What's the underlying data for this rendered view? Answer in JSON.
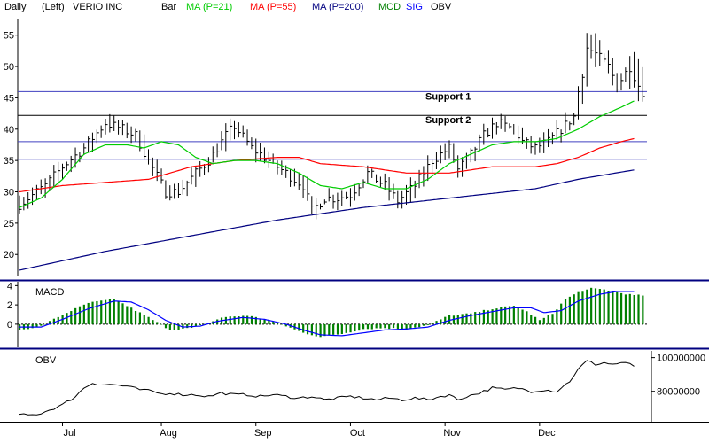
{
  "header": {
    "period": "Daily",
    "scale_side": "(Left)",
    "symbol": "VERIO INC",
    "legend": [
      {
        "label": "Bar",
        "color": "#000000"
      },
      {
        "label": "MA (P=21)",
        "color": "#00cc00"
      },
      {
        "label": "MA (P=55)",
        "color": "#ff0000"
      },
      {
        "label": "MA (P=200)",
        "color": "#000080"
      },
      {
        "label": "MCD",
        "color": "#008000"
      },
      {
        "label": "SIG",
        "color": "#0000ff"
      },
      {
        "label": "OBV",
        "color": "#000000"
      }
    ]
  },
  "colors": {
    "bars": "#000000",
    "ma21": "#00cc00",
    "ma55": "#ff0000",
    "ma200": "#000080",
    "macd_hist": "#008000",
    "signal": "#0000ff",
    "support_blue": "#4040c0",
    "support_black": "#000000",
    "panel_border": "#000080"
  },
  "chart_data": [
    {
      "type": "bar",
      "subtype": "ohlc",
      "panel": "price",
      "y_ticks": [
        20,
        25,
        30,
        35,
        40,
        45,
        50,
        55
      ],
      "ylim": [
        16.5,
        57.5
      ],
      "xlim": [
        0,
        146
      ],
      "x_ticks": [
        {
          "label": "Jul",
          "x": 10
        },
        {
          "label": "Aug",
          "x": 33
        },
        {
          "label": "Sep",
          "x": 55
        },
        {
          "label": "Oct",
          "x": 77
        },
        {
          "label": "Nov",
          "x": 99
        },
        {
          "label": "Dec",
          "x": 121
        }
      ],
      "support_lines": [
        {
          "label": "Support 1",
          "value": 46.0,
          "color": "#4040c0"
        },
        {
          "label": "Support 2",
          "value": 42.2,
          "color": "#000000"
        },
        {
          "label": "",
          "value": 38.0,
          "color": "#4040c0"
        },
        {
          "label": "",
          "value": 35.2,
          "color": "#4040c0"
        }
      ],
      "close_anchors": [
        [
          0,
          28
        ],
        [
          6,
          31
        ],
        [
          10,
          34
        ],
        [
          15,
          37
        ],
        [
          20,
          41
        ],
        [
          24,
          40
        ],
        [
          27,
          39
        ],
        [
          30,
          35
        ],
        [
          34,
          30
        ],
        [
          37,
          30
        ],
        [
          41,
          33
        ],
        [
          44,
          35
        ],
        [
          48,
          39
        ],
        [
          50,
          40.5
        ],
        [
          54,
          37
        ],
        [
          58,
          35
        ],
        [
          62,
          33
        ],
        [
          66,
          31
        ],
        [
          68,
          27
        ],
        [
          71,
          29
        ],
        [
          74,
          29
        ],
        [
          77,
          29.5
        ],
        [
          81,
          33
        ],
        [
          85,
          31
        ],
        [
          88,
          28.5
        ],
        [
          92,
          31
        ],
        [
          96,
          35
        ],
        [
          100,
          37
        ],
        [
          102,
          33.5
        ],
        [
          105,
          36
        ],
        [
          108,
          39
        ],
        [
          111,
          41
        ],
        [
          115,
          40
        ],
        [
          117,
          38
        ],
        [
          120,
          37
        ],
        [
          123,
          38
        ],
        [
          126,
          40
        ],
        [
          129,
          42
        ],
        [
          130,
          46
        ],
        [
          131,
          49
        ],
        [
          132,
          53
        ],
        [
          134,
          52
        ],
        [
          137,
          50
        ],
        [
          139,
          47
        ],
        [
          140,
          48
        ],
        [
          142,
          50
        ],
        [
          144,
          47
        ],
        [
          145,
          46
        ]
      ],
      "ma21_anchors": [
        [
          0,
          27.5
        ],
        [
          5,
          29
        ],
        [
          10,
          32
        ],
        [
          15,
          36
        ],
        [
          20,
          37.5
        ],
        [
          25,
          37.5
        ],
        [
          29,
          37
        ],
        [
          33,
          38
        ],
        [
          37,
          37.5
        ],
        [
          41,
          35.5
        ],
        [
          45,
          34.5
        ],
        [
          50,
          35
        ],
        [
          55,
          35
        ],
        [
          60,
          34.5
        ],
        [
          65,
          33
        ],
        [
          70,
          31
        ],
        [
          75,
          30.5
        ],
        [
          80,
          31.5
        ],
        [
          85,
          30.5
        ],
        [
          90,
          30.5
        ],
        [
          95,
          32
        ],
        [
          100,
          34.5
        ],
        [
          105,
          36
        ],
        [
          110,
          37.5
        ],
        [
          115,
          38
        ],
        [
          120,
          38
        ],
        [
          125,
          38.5
        ],
        [
          130,
          40
        ],
        [
          135,
          42
        ],
        [
          140,
          43.5
        ],
        [
          143,
          44.5
        ]
      ],
      "ma55_anchors": [
        [
          0,
          30
        ],
        [
          10,
          31
        ],
        [
          20,
          31.5
        ],
        [
          30,
          32
        ],
        [
          40,
          34
        ],
        [
          50,
          35
        ],
        [
          60,
          35.5
        ],
        [
          65,
          35.5
        ],
        [
          70,
          34.5
        ],
        [
          80,
          34
        ],
        [
          90,
          33
        ],
        [
          100,
          33
        ],
        [
          110,
          34
        ],
        [
          120,
          34
        ],
        [
          125,
          34.5
        ],
        [
          130,
          35.5
        ],
        [
          135,
          37
        ],
        [
          140,
          38
        ],
        [
          143,
          38.5
        ]
      ],
      "ma200_anchors": [
        [
          0,
          17.5
        ],
        [
          20,
          20.5
        ],
        [
          40,
          23
        ],
        [
          60,
          25.5
        ],
        [
          80,
          27.5
        ],
        [
          100,
          29
        ],
        [
          120,
          30.5
        ],
        [
          130,
          32
        ],
        [
          143,
          33.5
        ]
      ]
    },
    {
      "type": "bar",
      "panel": "macd",
      "title": "MACD",
      "y_ticks": [
        4,
        2,
        0
      ],
      "ylim": [
        -2.4,
        4.4
      ],
      "hist_anchors": [
        [
          0,
          -0.6
        ],
        [
          5,
          -0.2
        ],
        [
          10,
          1.0
        ],
        [
          16,
          2.2
        ],
        [
          22,
          2.6
        ],
        [
          25,
          1.9
        ],
        [
          30,
          0.7
        ],
        [
          35,
          -0.6
        ],
        [
          40,
          -0.4
        ],
        [
          44,
          0.1
        ],
        [
          47,
          0.7
        ],
        [
          53,
          0.9
        ],
        [
          58,
          0.4
        ],
        [
          62,
          -0.2
        ],
        [
          66,
          -0.9
        ],
        [
          70,
          -1.3
        ],
        [
          75,
          -1.0
        ],
        [
          80,
          -0.5
        ],
        [
          85,
          -0.4
        ],
        [
          90,
          -0.5
        ],
        [
          95,
          -0.1
        ],
        [
          100,
          0.9
        ],
        [
          105,
          1.1
        ],
        [
          110,
          1.6
        ],
        [
          115,
          1.9
        ],
        [
          118,
          1.3
        ],
        [
          121,
          0.4
        ],
        [
          124,
          1.1
        ],
        [
          127,
          2.6
        ],
        [
          130,
          3.3
        ],
        [
          133,
          3.7
        ],
        [
          136,
          3.6
        ],
        [
          139,
          3.3
        ],
        [
          143,
          3.0
        ]
      ],
      "signal_anchors": [
        [
          0,
          -0.3
        ],
        [
          5,
          -0.3
        ],
        [
          10,
          0.5
        ],
        [
          16,
          1.6
        ],
        [
          22,
          2.4
        ],
        [
          26,
          2.3
        ],
        [
          30,
          1.5
        ],
        [
          34,
          0.4
        ],
        [
          38,
          -0.3
        ],
        [
          42,
          -0.2
        ],
        [
          46,
          0.3
        ],
        [
          52,
          0.7
        ],
        [
          57,
          0.5
        ],
        [
          62,
          0.0
        ],
        [
          66,
          -0.6
        ],
        [
          70,
          -1.1
        ],
        [
          75,
          -1.2
        ],
        [
          80,
          -0.9
        ],
        [
          85,
          -0.6
        ],
        [
          90,
          -0.5
        ],
        [
          95,
          -0.3
        ],
        [
          100,
          0.4
        ],
        [
          105,
          0.9
        ],
        [
          110,
          1.3
        ],
        [
          115,
          1.7
        ],
        [
          119,
          1.7
        ],
        [
          122,
          1.2
        ],
        [
          126,
          1.4
        ],
        [
          130,
          2.4
        ],
        [
          135,
          3.1
        ],
        [
          139,
          3.4
        ],
        [
          143,
          3.4
        ]
      ]
    },
    {
      "type": "line",
      "panel": "obv",
      "title": "OBV",
      "y_ticks": [
        100000000,
        80000000
      ],
      "y_tick_labels": [
        "100000000",
        "80000000"
      ],
      "ylim": [
        62000000,
        104000000
      ],
      "obv_anchors": [
        [
          0,
          66
        ],
        [
          3,
          66
        ],
        [
          5,
          67
        ],
        [
          8,
          70
        ],
        [
          10,
          72
        ],
        [
          13,
          77
        ],
        [
          15,
          82
        ],
        [
          17,
          85
        ],
        [
          19,
          84
        ],
        [
          22,
          84
        ],
        [
          25,
          83
        ],
        [
          28,
          81
        ],
        [
          31,
          80
        ],
        [
          33,
          78.5
        ],
        [
          35,
          79
        ],
        [
          38,
          78
        ],
        [
          41,
          78
        ],
        [
          44,
          77
        ],
        [
          47,
          79
        ],
        [
          50,
          78
        ],
        [
          53,
          78
        ],
        [
          56,
          77
        ],
        [
          59,
          78
        ],
        [
          62,
          77
        ],
        [
          65,
          76
        ],
        [
          68,
          77
        ],
        [
          71,
          75
        ],
        [
          74,
          76
        ],
        [
          77,
          77
        ],
        [
          80,
          76
        ],
        [
          83,
          75
        ],
        [
          86,
          76
        ],
        [
          89,
          75
        ],
        [
          92,
          76
        ],
        [
          95,
          75
        ],
        [
          98,
          77
        ],
        [
          100,
          78
        ],
        [
          102,
          75
        ],
        [
          104,
          77
        ],
        [
          107,
          79
        ],
        [
          110,
          82
        ],
        [
          113,
          81
        ],
        [
          116,
          82
        ],
        [
          119,
          80
        ],
        [
          122,
          81
        ],
        [
          125,
          80
        ],
        [
          128,
          86
        ],
        [
          130,
          93
        ],
        [
          132,
          98
        ],
        [
          134,
          96
        ],
        [
          136,
          97
        ],
        [
          138,
          96
        ],
        [
          140,
          97
        ],
        [
          142,
          96
        ],
        [
          143,
          95
        ]
      ]
    }
  ]
}
